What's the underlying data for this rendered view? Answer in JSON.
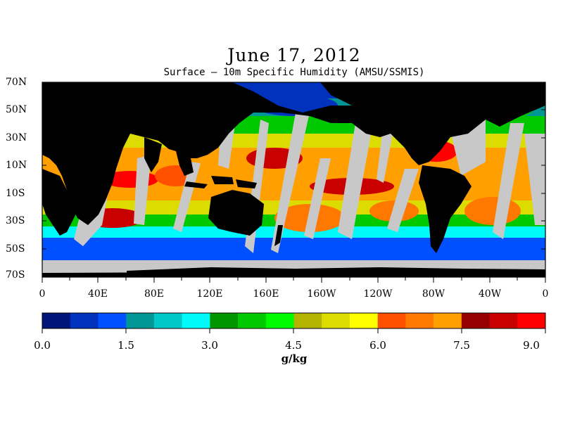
{
  "title": "June 17, 2012",
  "subtitle": "Surface – 10m Specific Humidity (AMSU/SSMIS)",
  "colors": {
    "land": "#000000",
    "missing": "#c8c8c8",
    "background": "#ffffff"
  },
  "latitude_labels": [
    "70N",
    "50N",
    "30N",
    "10N",
    "10S",
    "30S",
    "50S",
    "70S"
  ],
  "longitude_labels": [
    "0",
    "40E",
    "80E",
    "120E",
    "160E",
    "160W",
    "120W",
    "80W",
    "40W",
    "0"
  ],
  "colorbar": {
    "colors": [
      "#00147a",
      "#0032be",
      "#0050ff",
      "#009696",
      "#00c8c8",
      "#00fafa",
      "#009600",
      "#00c800",
      "#00fa00",
      "#b4b400",
      "#dcdc00",
      "#ffff00",
      "#ff5000",
      "#ff7800",
      "#ffa000",
      "#960000",
      "#c80000",
      "#ff0000"
    ],
    "tick_labels": [
      "0.0",
      "1.5",
      "3.0",
      "4.5",
      "6.0",
      "7.5",
      "9.0"
    ],
    "range": [
      0.0,
      9.0
    ],
    "units": "g/kg"
  }
}
